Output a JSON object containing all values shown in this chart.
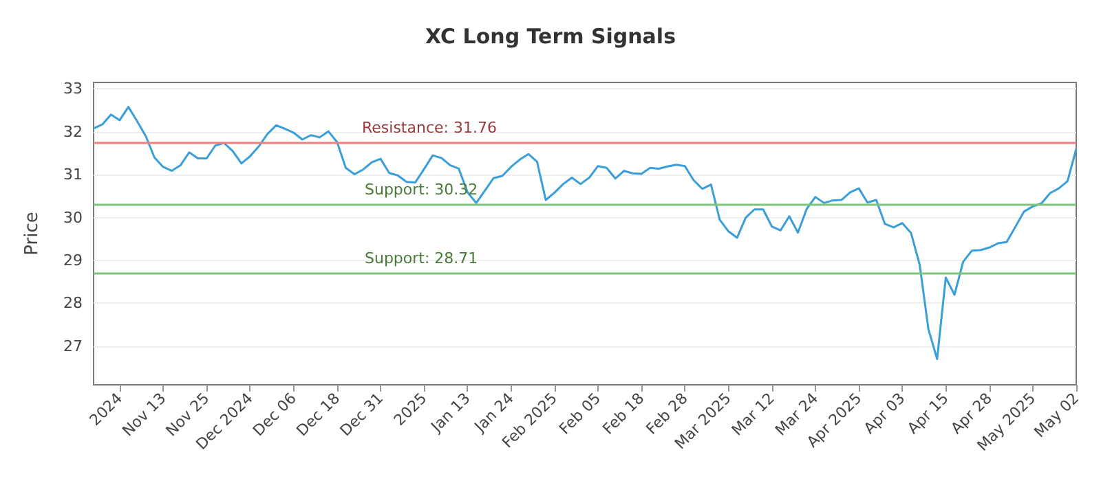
{
  "chart_data": {
    "type": "line",
    "title": "XC Long Term Signals",
    "ylabel": "Price",
    "categories": [
      null,
      null,
      null,
      "2024",
      null,
      null,
      null,
      null,
      "Nov 13",
      null,
      null,
      null,
      null,
      "Nov 25",
      null,
      null,
      null,
      null,
      "Dec 2024",
      null,
      null,
      null,
      null,
      "Dec 06",
      null,
      null,
      null,
      null,
      "Dec 18",
      null,
      null,
      null,
      null,
      "Dec 31",
      null,
      null,
      null,
      null,
      "2025",
      null,
      null,
      null,
      null,
      "Jan 13",
      null,
      null,
      null,
      null,
      "Jan 24",
      null,
      null,
      null,
      null,
      "Feb 2025",
      null,
      null,
      null,
      null,
      "Feb 05",
      null,
      null,
      null,
      null,
      "Feb 18",
      null,
      null,
      null,
      null,
      "Feb 28",
      null,
      null,
      null,
      null,
      "Mar 2025",
      null,
      null,
      null,
      null,
      "Mar 12",
      null,
      null,
      null,
      null,
      "Mar 24",
      null,
      null,
      null,
      null,
      "Apr 2025",
      null,
      null,
      null,
      null,
      "Apr 03",
      null,
      null,
      null,
      null,
      "Apr 15",
      null,
      null,
      null,
      null,
      "Apr 28",
      null,
      null,
      null,
      null,
      "May 2025",
      null,
      null,
      null,
      null,
      "May 02"
    ],
    "series": [
      {
        "color": "#3a9fd8",
        "values": [
          32.08,
          32.17,
          32.4,
          32.27,
          32.58,
          32.25,
          31.9,
          31.4,
          31.18,
          31.09,
          31.22,
          31.52,
          31.38,
          31.38,
          31.68,
          31.74,
          31.55,
          31.26,
          31.43,
          31.66,
          31.95,
          32.15,
          32.07,
          31.98,
          31.82,
          31.92,
          31.87,
          32.01,
          31.76,
          31.16,
          31.01,
          31.12,
          31.29,
          31.37,
          31.04,
          30.98,
          30.83,
          30.82,
          31.13,
          31.45,
          31.39,
          31.22,
          31.14,
          30.59,
          30.34,
          30.63,
          30.92,
          30.97,
          31.18,
          31.35,
          31.48,
          31.3,
          30.41,
          30.58,
          30.78,
          30.93,
          30.78,
          30.93,
          31.2,
          31.16,
          30.91,
          31.09,
          31.03,
          31.02,
          31.16,
          31.14,
          31.19,
          31.23,
          31.2,
          30.87,
          30.67,
          30.77,
          29.95,
          29.68,
          29.53,
          30.0,
          30.19,
          30.19,
          29.79,
          29.7,
          30.03,
          29.65,
          30.2,
          30.48,
          30.34,
          30.4,
          30.41,
          30.59,
          30.68,
          30.35,
          30.41,
          29.85,
          29.77,
          29.87,
          29.64,
          28.9,
          27.4,
          26.7,
          28.6,
          28.2,
          28.97,
          29.23,
          29.24,
          29.3,
          29.4,
          29.43,
          29.78,
          30.14,
          30.26,
          30.33,
          30.57,
          30.68,
          30.85,
          31.6
        ]
      }
    ],
    "ylim": [
      26.1,
      33.15
    ],
    "yticks": [
      27,
      28,
      29,
      30,
      31,
      32,
      33
    ],
    "grid": "y",
    "marker": "none",
    "line_style": "solid",
    "ref_lines": [
      {
        "axis": "y",
        "value": 31.76,
        "label": "Resistance: 31.76",
        "color": "#f08080"
      },
      {
        "axis": "y",
        "value": 30.32,
        "label": "Support: 30.32",
        "color": "#7cc47c"
      },
      {
        "axis": "y",
        "value": 28.71,
        "label": "Support: 28.71",
        "color": "#7cc47c"
      }
    ]
  }
}
